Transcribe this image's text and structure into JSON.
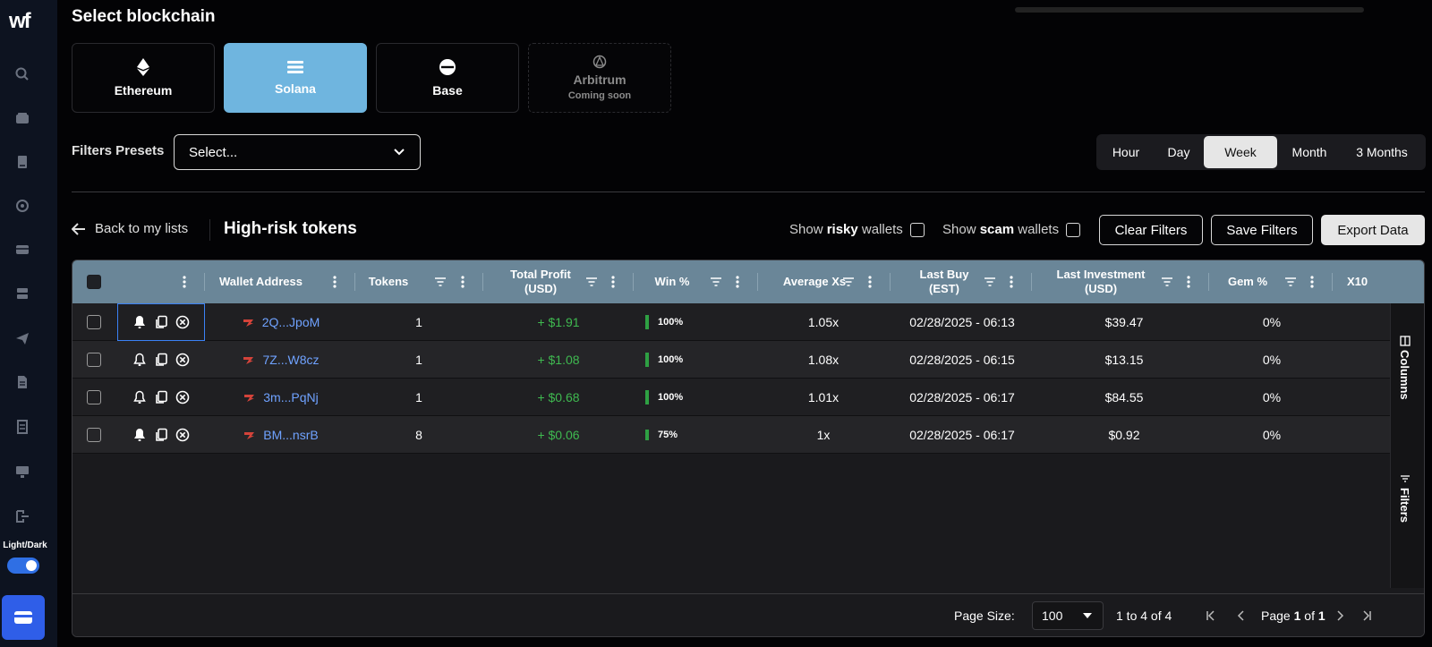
{
  "app": {
    "logo": "wf",
    "theme_label": "Light/Dark"
  },
  "sidebar": {
    "icons": [
      "search-icon",
      "wallet-icon",
      "book-icon",
      "aperture-icon",
      "card-icon",
      "server-icon",
      "telegram-icon",
      "document-icon",
      "receipt-icon",
      "monitor-icon",
      "logout-icon"
    ]
  },
  "header": {
    "title": "Select blockchain"
  },
  "chains": [
    {
      "label": "Ethereum",
      "icon": "ethereum-icon"
    },
    {
      "label": "Solana",
      "icon": "solana-icon",
      "selected": true
    },
    {
      "label": "Base",
      "icon": "base-icon"
    },
    {
      "label": "Arbitrum",
      "icon": "arbitrum-icon",
      "sublabel": "Coming soon",
      "disabled": true
    }
  ],
  "filters": {
    "presets_label": "Filters Presets",
    "presets_value": "Select..."
  },
  "periods": [
    "Hour",
    "Day",
    "Week",
    "Month",
    "3 Months"
  ],
  "period_active": "Week",
  "list": {
    "back_label": "Back to my lists",
    "title": "High-risk tokens",
    "risky_prefix": "Show ",
    "risky_bold": "risky",
    "risky_suffix": " wallets",
    "scam_prefix": "Show ",
    "scam_bold": "scam",
    "scam_suffix": " wallets",
    "clear_filters": "Clear Filters",
    "save_filters": "Save Filters",
    "export_data": "Export Data"
  },
  "table": {
    "columns": {
      "wallet": "Wallet Address",
      "tokens": "Tokens",
      "profit_1": "Total Profit",
      "profit_2": "(USD)",
      "win": "Win %",
      "avgxs": "Average Xs",
      "lastbuy_1": "Last Buy",
      "lastbuy_2": "(EST)",
      "lastinv_1": "Last Investment",
      "lastinv_2": "(USD)",
      "gem": "Gem %",
      "x10": "X10"
    },
    "rows": [
      {
        "wallet": "2Q...JpoM",
        "tokens": "1",
        "profit": "+ $1.91",
        "win": "100%",
        "avgxs": "1.05x",
        "lastbuy": "02/28/2025 - 06:13",
        "lastinv": "$39.47",
        "gem": "0%"
      },
      {
        "wallet": "7Z...W8cz",
        "tokens": "1",
        "profit": "+ $1.08",
        "win": "100%",
        "avgxs": "1.08x",
        "lastbuy": "02/28/2025 - 06:15",
        "lastinv": "$13.15",
        "gem": "0%"
      },
      {
        "wallet": "3m...PqNj",
        "tokens": "1",
        "profit": "+ $0.68",
        "win": "100%",
        "avgxs": "1.01x",
        "lastbuy": "02/28/2025 - 06:17",
        "lastinv": "$84.55",
        "gem": "0%"
      },
      {
        "wallet": "BM...nsrB",
        "tokens": "8",
        "profit": "+ $0.06",
        "win": "75%",
        "avgxs": "1x",
        "lastbuy": "02/28/2025 - 06:17",
        "lastinv": "$0.92",
        "gem": "0%"
      }
    ],
    "win_fractions": [
      1.0,
      1.0,
      1.0,
      0.75
    ],
    "side_panel": {
      "columns": "Columns",
      "filters": "Filters"
    }
  },
  "footer": {
    "page_size_label": "Page Size:",
    "page_size_value": "100",
    "range": "1 to 4 of 4",
    "page_prefix": "Page ",
    "page_current": "1",
    "page_mid": " of ",
    "page_total": "1"
  },
  "colors": {
    "accent_selected": "#6fb5df",
    "header_bg": "#6a8698",
    "profit": "#3fb950",
    "address": "#6fa2ff",
    "toggle": "#2f6fe4"
  }
}
